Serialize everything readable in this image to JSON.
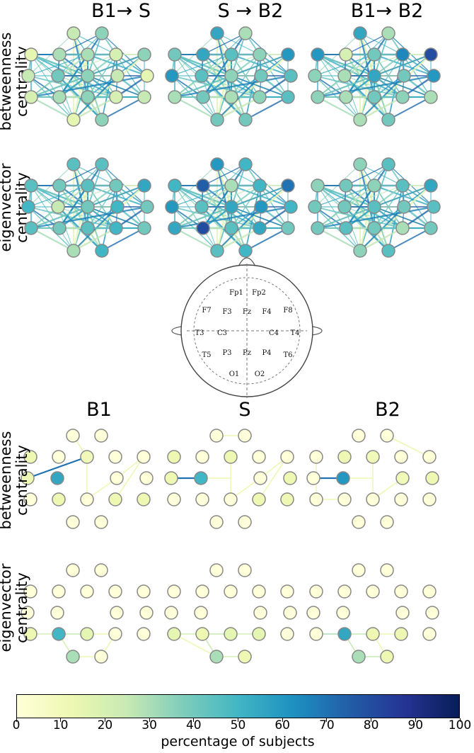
{
  "top_section": {
    "columns": [
      "B1→ S",
      "S → B2",
      "B1→ B2"
    ],
    "rows": [
      {
        "line1": "betweenness",
        "line2": "centrality"
      },
      {
        "line1": "eigenvector",
        "line2": "centrality"
      }
    ]
  },
  "bottom_section": {
    "columns": [
      "B1",
      "S",
      "B2"
    ],
    "rows": [
      {
        "line1": "betweenness",
        "line2": "centrality"
      },
      {
        "line1": "eigenvector",
        "line2": "centrality"
      }
    ]
  },
  "head_map": {
    "electrodes": [
      "Fp1",
      "Fp2",
      "F7",
      "F3",
      "Fz",
      "F4",
      "F8",
      "T3",
      "C3",
      "C4",
      "T4",
      "T5",
      "P3",
      "Pz",
      "P4",
      "T6",
      "O1",
      "O2"
    ]
  },
  "colorbar": {
    "label": "percentage of subjects",
    "ticks": [
      "0",
      "10",
      "20",
      "30",
      "40",
      "50",
      "60",
      "70",
      "80",
      "90",
      "100"
    ],
    "min": 0,
    "max": 100,
    "colormap": [
      "#ffffd9",
      "#edf8b1",
      "#c7e9b4",
      "#7fcdbb",
      "#41b6c4",
      "#1d91c0",
      "#225ea8",
      "#253494",
      "#081d58"
    ]
  },
  "node_values": {
    "top_betweenness": [
      [
        null,
        25,
        35,
        null,
        15,
        30,
        30,
        20,
        35,
        25,
        40,
        35,
        25,
        15,
        20,
        30,
        35,
        20,
        25,
        15,
        35
      ],
      [
        null,
        55,
        30,
        null,
        40,
        55,
        45,
        35,
        60,
        60,
        45,
        35,
        40,
        45,
        30,
        40,
        30,
        35,
        45,
        40,
        40
      ],
      [
        null,
        55,
        30,
        null,
        60,
        20,
        40,
        65,
        80,
        35,
        30,
        55,
        40,
        60,
        35,
        30,
        40,
        35,
        30,
        30,
        40
      ]
    ],
    "top_eigenvector": [
      [
        null,
        45,
        45,
        null,
        45,
        40,
        45,
        40,
        55,
        50,
        25,
        40,
        50,
        40,
        45,
        40,
        45,
        50,
        40,
        30,
        50
      ],
      [
        null,
        60,
        50,
        null,
        50,
        75,
        30,
        50,
        70,
        60,
        45,
        55,
        60,
        50,
        55,
        80,
        45,
        55,
        40,
        45,
        50
      ],
      [
        null,
        35,
        45,
        null,
        35,
        40,
        35,
        45,
        55,
        40,
        40,
        45,
        40,
        45,
        40,
        45,
        40,
        30,
        40,
        35,
        45
      ]
    ],
    "bottom_betweenness": [
      [
        null,
        0,
        0,
        null,
        12,
        0,
        10,
        0,
        0,
        12,
        55,
        0,
        0,
        0,
        0,
        12,
        0,
        12,
        12,
        0,
        0
      ],
      [
        null,
        0,
        0,
        null,
        12,
        0,
        12,
        0,
        0,
        12,
        50,
        0,
        0,
        12,
        0,
        0,
        0,
        12,
        12,
        0,
        0
      ],
      [
        null,
        0,
        0,
        null,
        0,
        12,
        10,
        0,
        0,
        0,
        60,
        0,
        10,
        12,
        0,
        0,
        0,
        0,
        0,
        0,
        0
      ]
    ],
    "bottom_eigenvector": [
      [
        null,
        0,
        0,
        null,
        0,
        0,
        0,
        0,
        0,
        0,
        0,
        0,
        0,
        0,
        12,
        50,
        15,
        0,
        0,
        30,
        0
      ],
      [
        null,
        0,
        0,
        null,
        0,
        0,
        0,
        0,
        0,
        0,
        0,
        0,
        0,
        0,
        15,
        12,
        15,
        15,
        0,
        30,
        12
      ],
      [
        null,
        0,
        0,
        null,
        0,
        0,
        0,
        0,
        0,
        0,
        0,
        0,
        0,
        0,
        0,
        55,
        12,
        12,
        0,
        30,
        12
      ]
    ]
  },
  "edge_values": {
    "bottom_betweenness": [
      [
        [
          9,
          6,
          70
        ],
        [
          1,
          6,
          12
        ],
        [
          6,
          11,
          12
        ],
        [
          11,
          16,
          12
        ],
        [
          16,
          12,
          12
        ],
        [
          12,
          8,
          12
        ],
        [
          8,
          17,
          12
        ]
      ],
      [
        [
          9,
          10,
          70
        ],
        [
          1,
          2,
          12
        ],
        [
          10,
          11,
          12
        ],
        [
          6,
          16,
          12
        ],
        [
          16,
          12,
          12
        ],
        [
          12,
          8,
          12
        ],
        [
          8,
          17,
          12
        ]
      ],
      [
        [
          9,
          10,
          70
        ],
        [
          2,
          8,
          12
        ],
        [
          6,
          16,
          12
        ],
        [
          16,
          12,
          12
        ],
        [
          4,
          14,
          12
        ],
        [
          14,
          15,
          12
        ],
        [
          10,
          11,
          12
        ]
      ]
    ],
    "bottom_eigenvector": [
      [
        [
          14,
          15,
          20
        ],
        [
          15,
          16,
          25
        ],
        [
          16,
          17,
          12
        ],
        [
          15,
          19,
          20
        ],
        [
          19,
          20,
          12
        ],
        [
          17,
          20,
          12
        ]
      ],
      [
        [
          14,
          15,
          20
        ],
        [
          15,
          16,
          25
        ],
        [
          16,
          17,
          20
        ],
        [
          15,
          19,
          25
        ],
        [
          19,
          20,
          20
        ],
        [
          14,
          19,
          12
        ]
      ],
      [
        [
          14,
          15,
          30
        ],
        [
          15,
          16,
          25
        ],
        [
          15,
          19,
          25
        ],
        [
          19,
          20,
          25
        ],
        [
          16,
          20,
          12
        ],
        [
          16,
          17,
          12
        ]
      ]
    ]
  }
}
